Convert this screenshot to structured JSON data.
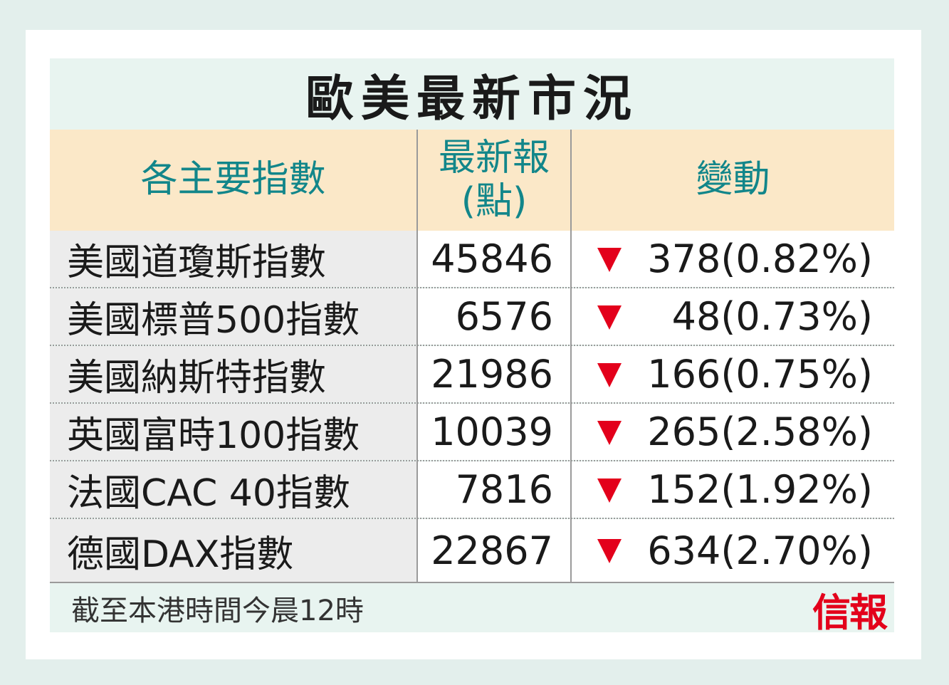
{
  "title": "歐美最新市況",
  "header": {
    "col1": "各主要指數",
    "col2_line1": "最新報",
    "col2_line2": "(點)",
    "col3": "變動"
  },
  "rows": [
    {
      "name": "美國道瓊斯指數",
      "value": "45846",
      "change": "378(0.82%)",
      "direction": "down"
    },
    {
      "name": "美國標普500指數",
      "value": "6576",
      "change": "48(0.73%)",
      "direction": "down"
    },
    {
      "name": "美國納斯特指數",
      "value": "21986",
      "change": "166(0.75%)",
      "direction": "down"
    },
    {
      "name": "英國富時100指數",
      "value": "10039",
      "change": "265(2.58%)",
      "direction": "down"
    },
    {
      "name": "法國CAC 40指數",
      "value": "7816",
      "change": "152(1.92%)",
      "direction": "down"
    },
    {
      "name": "德國DAX指數",
      "value": "22867",
      "change": "634(2.70%)",
      "direction": "down"
    }
  ],
  "footer": {
    "note": "截至本港時間今晨12時",
    "logo": "信報"
  },
  "colors": {
    "header_text": "#12868a",
    "header_bg": "#fbe8c8",
    "down_arrow": "#e3001b",
    "logo": "#e3001b"
  }
}
